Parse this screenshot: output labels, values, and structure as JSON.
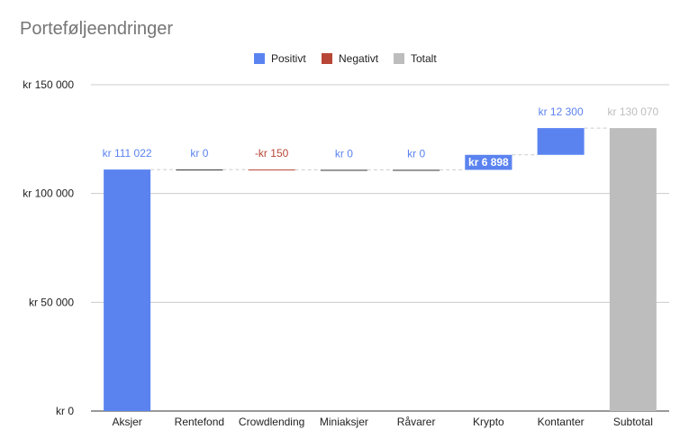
{
  "chart_data": {
    "type": "waterfall",
    "title": "Porteføljeendringer",
    "legend": [
      {
        "key": "positive",
        "label": "Positivt",
        "color": "#5b83f0"
      },
      {
        "key": "negative",
        "label": "Negativt",
        "color": "#b84636"
      },
      {
        "key": "total",
        "label": "Totalt",
        "color": "#bdbdbd"
      }
    ],
    "legend_position": "top-center",
    "grid": true,
    "ylim": [
      0,
      150000
    ],
    "yticks": [
      {
        "value": 0,
        "label": "kr  0"
      },
      {
        "value": 50000,
        "label": "kr  50 000"
      },
      {
        "value": 100000,
        "label": "kr  100 000"
      },
      {
        "value": 150000,
        "label": "kr  150 000"
      }
    ],
    "steps": [
      {
        "category": "Aksjer",
        "value": 111022,
        "kind": "positive",
        "label": "kr  111 022"
      },
      {
        "category": "Rentefond",
        "value": 0,
        "kind": "positive",
        "label": "kr  0"
      },
      {
        "category": "Crowdlending",
        "value": -150,
        "kind": "negative",
        "label": "-kr  150"
      },
      {
        "category": "Miniaksjer",
        "value": 0,
        "kind": "positive",
        "label": "kr  0"
      },
      {
        "category": "Råvarer",
        "value": 0,
        "kind": "positive",
        "label": "kr  0"
      },
      {
        "category": "Krypto",
        "value": 6898,
        "kind": "positive",
        "label": "kr  6 898",
        "label_style": "boxed"
      },
      {
        "category": "Kontanter",
        "value": 12300,
        "kind": "positive",
        "label": "kr  12 300"
      },
      {
        "category": "Subtotal",
        "value": 130070,
        "kind": "total",
        "label": "kr  130 070"
      }
    ]
  }
}
